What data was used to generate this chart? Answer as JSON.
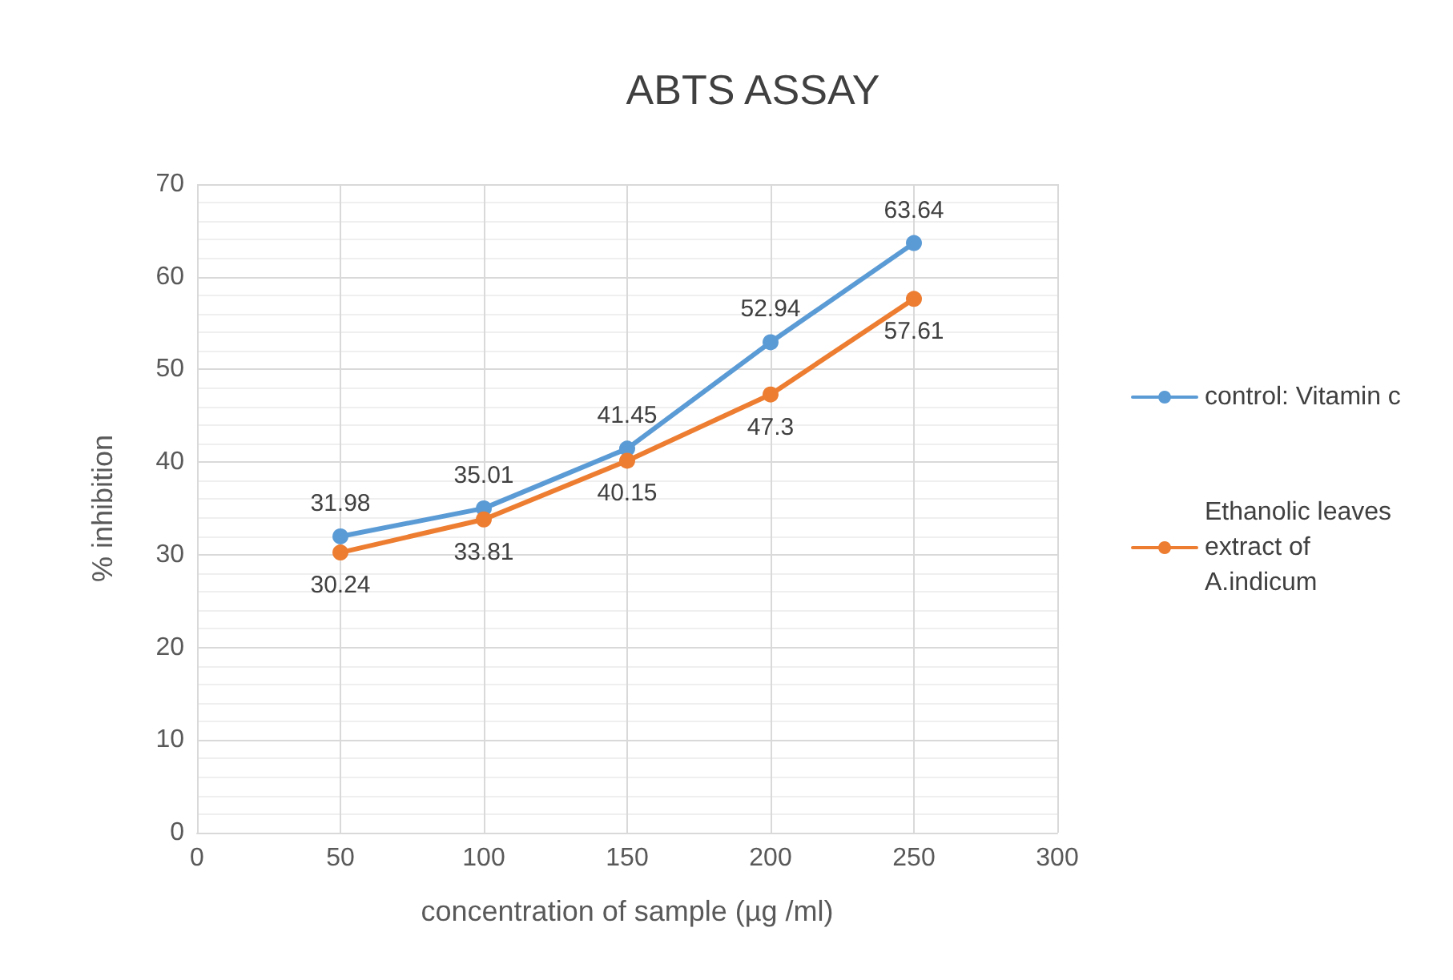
{
  "chart_data": {
    "type": "line",
    "title": "ABTS ASSAY",
    "xlabel": "concentration of sample (µg /ml)",
    "ylabel": "% inhibition",
    "x": [
      50,
      100,
      150,
      200,
      250
    ],
    "series": [
      {
        "name": "control: Vitamin c",
        "color": "#5b9bd5",
        "values": [
          31.98,
          35.01,
          41.45,
          52.94,
          63.64
        ]
      },
      {
        "name": "Ethanolic leaves extract of A.indicum",
        "color": "#ed7d31",
        "values": [
          30.24,
          33.81,
          40.15,
          47.3,
          57.61
        ]
      }
    ],
    "xlim": [
      0,
      300
    ],
    "xticks": [
      0,
      50,
      100,
      150,
      200,
      250,
      300
    ],
    "ylim": [
      0,
      70
    ],
    "yticks": [
      0,
      10,
      20,
      30,
      40,
      50,
      60,
      70
    ],
    "grid": true,
    "legend": "right",
    "marker": "circle",
    "line_style": "solid",
    "data_labels": true
  }
}
